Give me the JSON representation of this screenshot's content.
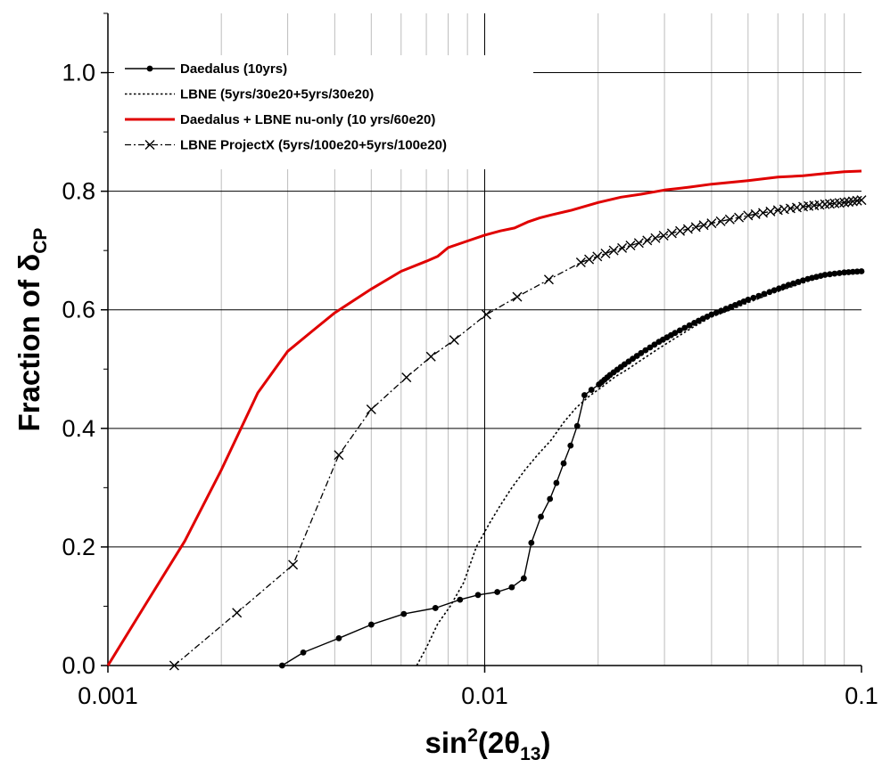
{
  "chart_data": {
    "type": "line",
    "xlabel": {
      "base": "sin",
      "sup": "2",
      "mid": "(2θ",
      "sub": "13",
      "end": ")"
    },
    "ylabel": {
      "base": "Fraction of δ",
      "sub": "CP"
    },
    "x_scale": "log",
    "xlim": [
      0.001,
      0.1
    ],
    "ylim": [
      0.0,
      1.1
    ],
    "x_ticks": [
      {
        "value": 0.001,
        "label": "0.001"
      },
      {
        "value": 0.01,
        "label": "0.01"
      },
      {
        "value": 0.1,
        "label": "0.1"
      }
    ],
    "y_ticks": [
      {
        "value": 0.0,
        "label": "0.0"
      },
      {
        "value": 0.2,
        "label": "0.2"
      },
      {
        "value": 0.4,
        "label": "0.4"
      },
      {
        "value": 0.6,
        "label": "0.6"
      },
      {
        "value": 0.8,
        "label": "0.8"
      },
      {
        "value": 1.0,
        "label": "1.0"
      }
    ],
    "grid": true,
    "legend_position": "top-left",
    "series": [
      {
        "name": "Daedalus (10yrs)",
        "color": "#000000",
        "style": "solid-dot",
        "x": [
          0.0029,
          0.0033,
          0.0041,
          0.005,
          0.0061,
          0.0074,
          0.0086,
          0.0096,
          0.0108,
          0.0118,
          0.0127,
          0.0133,
          0.0141,
          0.0149,
          0.0155,
          0.0162,
          0.0169,
          0.0176,
          0.0184,
          0.0192,
          0.0201,
          0.0215,
          0.0235,
          0.026,
          0.029,
          0.032,
          0.036,
          0.04,
          0.045,
          0.05,
          0.057,
          0.064,
          0.072,
          0.08,
          0.09,
          0.1
        ],
        "y": [
          0.0,
          0.022,
          0.046,
          0.069,
          0.087,
          0.097,
          0.111,
          0.119,
          0.124,
          0.132,
          0.147,
          0.207,
          0.251,
          0.281,
          0.308,
          0.341,
          0.371,
          0.404,
          0.456,
          0.465,
          0.474,
          0.49,
          0.508,
          0.527,
          0.546,
          0.561,
          0.578,
          0.592,
          0.605,
          0.617,
          0.63,
          0.642,
          0.652,
          0.659,
          0.663,
          0.665
        ]
      },
      {
        "name": "LBNE (5yrs/30e20+5yrs/30e20)",
        "color": "#000000",
        "style": "dotted",
        "x": [
          0.0066,
          0.007,
          0.0075,
          0.0081,
          0.0088,
          0.0095,
          0.0103,
          0.011,
          0.0118,
          0.0128,
          0.0138,
          0.015,
          0.0162,
          0.0175,
          0.019,
          0.0205,
          0.0222,
          0.024,
          0.026,
          0.029,
          0.032,
          0.036,
          0.04,
          0.045,
          0.05,
          0.057,
          0.064,
          0.072,
          0.08,
          0.09,
          0.1
        ],
        "y": [
          0.0,
          0.03,
          0.07,
          0.1,
          0.14,
          0.2,
          0.24,
          0.27,
          0.3,
          0.33,
          0.355,
          0.38,
          0.41,
          0.435,
          0.455,
          0.47,
          0.487,
          0.5,
          0.515,
          0.535,
          0.552,
          0.572,
          0.588,
          0.6,
          0.612,
          0.626,
          0.637,
          0.648,
          0.657,
          0.661,
          0.665
        ]
      },
      {
        "name": "Daedalus + LBNE nu-only (10 yrs/60e20)",
        "color": "#e00000",
        "style": "solid-thick",
        "x": [
          0.001,
          0.00125,
          0.0016,
          0.002,
          0.0025,
          0.003,
          0.0035,
          0.004,
          0.005,
          0.006,
          0.007,
          0.0075,
          0.008,
          0.009,
          0.01,
          0.011,
          0.012,
          0.013,
          0.014,
          0.015,
          0.017,
          0.02,
          0.023,
          0.026,
          0.03,
          0.035,
          0.04,
          0.05,
          0.06,
          0.07,
          0.08,
          0.09,
          0.1
        ],
        "y": [
          0.0,
          0.1,
          0.21,
          0.33,
          0.46,
          0.53,
          0.565,
          0.595,
          0.635,
          0.665,
          0.682,
          0.69,
          0.705,
          0.716,
          0.726,
          0.733,
          0.738,
          0.748,
          0.755,
          0.76,
          0.768,
          0.781,
          0.79,
          0.795,
          0.802,
          0.807,
          0.812,
          0.818,
          0.824,
          0.826,
          0.83,
          0.833,
          0.834
        ]
      },
      {
        "name": "LBNE ProjectX (5yrs/100e20+5yrs/100e20)",
        "color": "#000000",
        "style": "dashdot-x",
        "x": [
          0.0015,
          0.0022,
          0.0031,
          0.0041,
          0.005,
          0.0062,
          0.0072,
          0.0083,
          0.0101,
          0.0122,
          0.0148,
          0.018,
          0.022,
          0.027,
          0.033,
          0.04,
          0.05,
          0.06,
          0.07,
          0.08,
          0.09,
          0.1
        ],
        "y": [
          0.0,
          0.089,
          0.17,
          0.355,
          0.432,
          0.486,
          0.521,
          0.549,
          0.592,
          0.622,
          0.651,
          0.68,
          0.7,
          0.717,
          0.733,
          0.746,
          0.759,
          0.768,
          0.774,
          0.778,
          0.781,
          0.785
        ]
      }
    ]
  }
}
